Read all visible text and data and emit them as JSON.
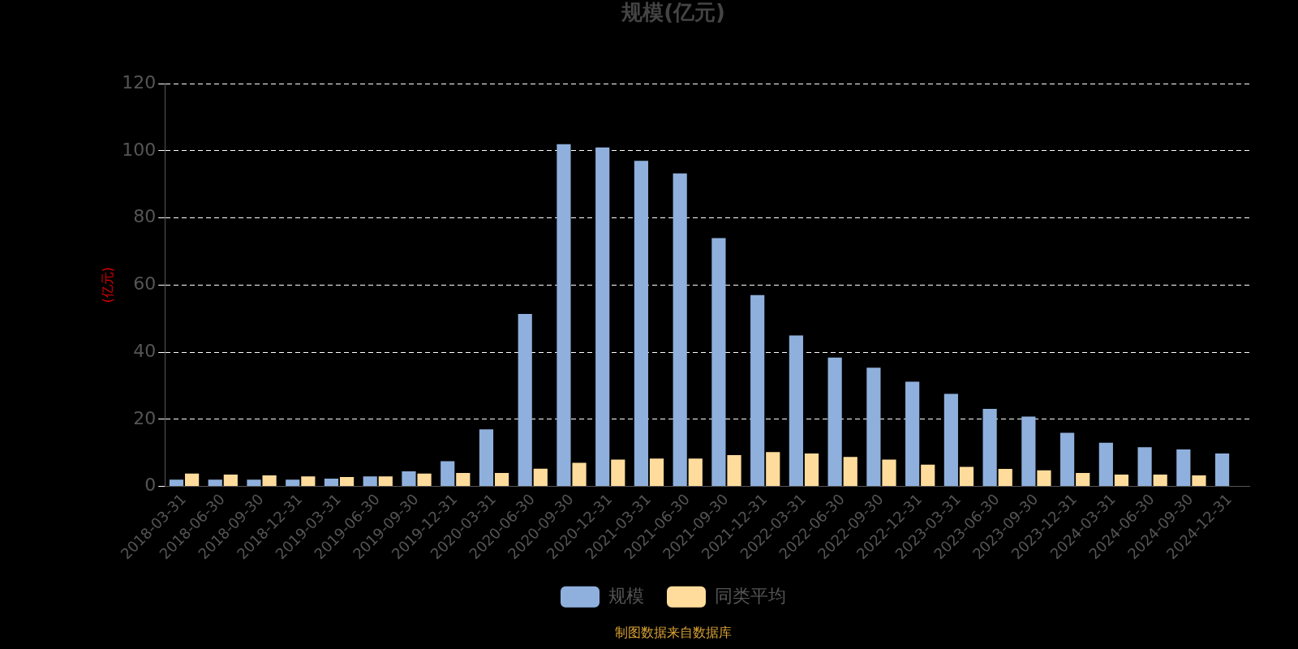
{
  "chart_data": {
    "type": "bar",
    "title": "规模(亿元)",
    "ylabel": "(亿元)",
    "categories": [
      "2018-03-31",
      "2018-06-30",
      "2018-09-30",
      "2018-12-31",
      "2019-03-31",
      "2019-06-30",
      "2019-09-30",
      "2019-12-31",
      "2020-03-31",
      "2020-06-30",
      "2020-09-30",
      "2020-12-31",
      "2021-03-31",
      "2021-06-30",
      "2021-09-30",
      "2021-12-31",
      "2022-03-31",
      "2022-06-30",
      "2022-09-30",
      "2022-12-31",
      "2023-03-31",
      "2023-06-30",
      "2023-09-30",
      "2023-12-31",
      "2024-03-31",
      "2024-06-30",
      "2024-09-30",
      "2024-12-31"
    ],
    "series": [
      {
        "name": "规模",
        "color": "#8fb0dc",
        "values": [
          2,
          2,
          2,
          2,
          2.3,
          3,
          4.5,
          7.5,
          17,
          51.4,
          102,
          101,
          97,
          93.3,
          74,
          57,
          45,
          38.4,
          35.4,
          31.2,
          27.6,
          23.1,
          20.8,
          16,
          13,
          11.7,
          11,
          9.8
        ]
      },
      {
        "name": "同类平均",
        "color": "#ffdc9c",
        "values": [
          3.8,
          3.5,
          3.3,
          3,
          2.8,
          3,
          3.8,
          4,
          4,
          5.3,
          7,
          8,
          8.3,
          8.3,
          9.3,
          10.2,
          9.8,
          8.8,
          8,
          6.5,
          5.8,
          5.2,
          4.8,
          4,
          3.5,
          3.5,
          3.3,
          null
        ]
      }
    ],
    "ylim": [
      0,
      120
    ],
    "yticks": [
      0,
      20,
      40,
      60,
      80,
      100,
      120
    ],
    "grid": "y",
    "legend": "bottom",
    "annotations": [
      "制图数据来自数据库"
    ]
  }
}
